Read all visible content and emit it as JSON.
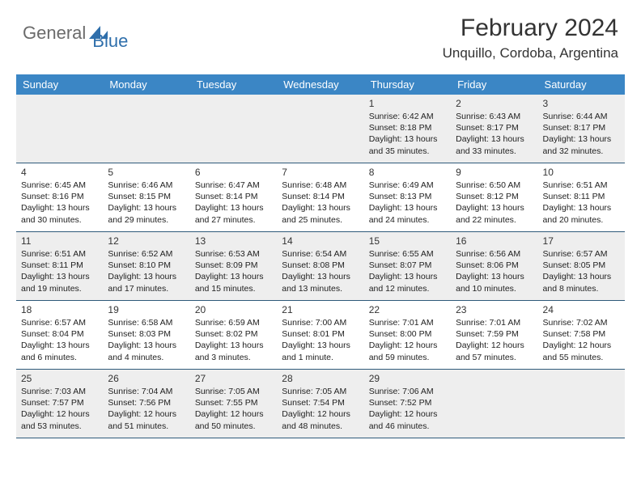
{
  "logo": {
    "gen": "General",
    "blue": "Blue"
  },
  "title": "February 2024",
  "location": "Unquillo, Cordoba, Argentina",
  "colors": {
    "header_bg": "#3b86c5",
    "row_border": "#2f5a7a",
    "alt_bg": "#eeeeee"
  },
  "dow": [
    "Sunday",
    "Monday",
    "Tuesday",
    "Wednesday",
    "Thursday",
    "Friday",
    "Saturday"
  ],
  "weeks": [
    [
      {
        "n": "",
        "sr": "",
        "ss": "",
        "dl": ""
      },
      {
        "n": "",
        "sr": "",
        "ss": "",
        "dl": ""
      },
      {
        "n": "",
        "sr": "",
        "ss": "",
        "dl": ""
      },
      {
        "n": "",
        "sr": "",
        "ss": "",
        "dl": ""
      },
      {
        "n": "1",
        "sr": "Sunrise: 6:42 AM",
        "ss": "Sunset: 8:18 PM",
        "dl": "Daylight: 13 hours and 35 minutes."
      },
      {
        "n": "2",
        "sr": "Sunrise: 6:43 AM",
        "ss": "Sunset: 8:17 PM",
        "dl": "Daylight: 13 hours and 33 minutes."
      },
      {
        "n": "3",
        "sr": "Sunrise: 6:44 AM",
        "ss": "Sunset: 8:17 PM",
        "dl": "Daylight: 13 hours and 32 minutes."
      }
    ],
    [
      {
        "n": "4",
        "sr": "Sunrise: 6:45 AM",
        "ss": "Sunset: 8:16 PM",
        "dl": "Daylight: 13 hours and 30 minutes."
      },
      {
        "n": "5",
        "sr": "Sunrise: 6:46 AM",
        "ss": "Sunset: 8:15 PM",
        "dl": "Daylight: 13 hours and 29 minutes."
      },
      {
        "n": "6",
        "sr": "Sunrise: 6:47 AM",
        "ss": "Sunset: 8:14 PM",
        "dl": "Daylight: 13 hours and 27 minutes."
      },
      {
        "n": "7",
        "sr": "Sunrise: 6:48 AM",
        "ss": "Sunset: 8:14 PM",
        "dl": "Daylight: 13 hours and 25 minutes."
      },
      {
        "n": "8",
        "sr": "Sunrise: 6:49 AM",
        "ss": "Sunset: 8:13 PM",
        "dl": "Daylight: 13 hours and 24 minutes."
      },
      {
        "n": "9",
        "sr": "Sunrise: 6:50 AM",
        "ss": "Sunset: 8:12 PM",
        "dl": "Daylight: 13 hours and 22 minutes."
      },
      {
        "n": "10",
        "sr": "Sunrise: 6:51 AM",
        "ss": "Sunset: 8:11 PM",
        "dl": "Daylight: 13 hours and 20 minutes."
      }
    ],
    [
      {
        "n": "11",
        "sr": "Sunrise: 6:51 AM",
        "ss": "Sunset: 8:11 PM",
        "dl": "Daylight: 13 hours and 19 minutes."
      },
      {
        "n": "12",
        "sr": "Sunrise: 6:52 AM",
        "ss": "Sunset: 8:10 PM",
        "dl": "Daylight: 13 hours and 17 minutes."
      },
      {
        "n": "13",
        "sr": "Sunrise: 6:53 AM",
        "ss": "Sunset: 8:09 PM",
        "dl": "Daylight: 13 hours and 15 minutes."
      },
      {
        "n": "14",
        "sr": "Sunrise: 6:54 AM",
        "ss": "Sunset: 8:08 PM",
        "dl": "Daylight: 13 hours and 13 minutes."
      },
      {
        "n": "15",
        "sr": "Sunrise: 6:55 AM",
        "ss": "Sunset: 8:07 PM",
        "dl": "Daylight: 13 hours and 12 minutes."
      },
      {
        "n": "16",
        "sr": "Sunrise: 6:56 AM",
        "ss": "Sunset: 8:06 PM",
        "dl": "Daylight: 13 hours and 10 minutes."
      },
      {
        "n": "17",
        "sr": "Sunrise: 6:57 AM",
        "ss": "Sunset: 8:05 PM",
        "dl": "Daylight: 13 hours and 8 minutes."
      }
    ],
    [
      {
        "n": "18",
        "sr": "Sunrise: 6:57 AM",
        "ss": "Sunset: 8:04 PM",
        "dl": "Daylight: 13 hours and 6 minutes."
      },
      {
        "n": "19",
        "sr": "Sunrise: 6:58 AM",
        "ss": "Sunset: 8:03 PM",
        "dl": "Daylight: 13 hours and 4 minutes."
      },
      {
        "n": "20",
        "sr": "Sunrise: 6:59 AM",
        "ss": "Sunset: 8:02 PM",
        "dl": "Daylight: 13 hours and 3 minutes."
      },
      {
        "n": "21",
        "sr": "Sunrise: 7:00 AM",
        "ss": "Sunset: 8:01 PM",
        "dl": "Daylight: 13 hours and 1 minute."
      },
      {
        "n": "22",
        "sr": "Sunrise: 7:01 AM",
        "ss": "Sunset: 8:00 PM",
        "dl": "Daylight: 12 hours and 59 minutes."
      },
      {
        "n": "23",
        "sr": "Sunrise: 7:01 AM",
        "ss": "Sunset: 7:59 PM",
        "dl": "Daylight: 12 hours and 57 minutes."
      },
      {
        "n": "24",
        "sr": "Sunrise: 7:02 AM",
        "ss": "Sunset: 7:58 PM",
        "dl": "Daylight: 12 hours and 55 minutes."
      }
    ],
    [
      {
        "n": "25",
        "sr": "Sunrise: 7:03 AM",
        "ss": "Sunset: 7:57 PM",
        "dl": "Daylight: 12 hours and 53 minutes."
      },
      {
        "n": "26",
        "sr": "Sunrise: 7:04 AM",
        "ss": "Sunset: 7:56 PM",
        "dl": "Daylight: 12 hours and 51 minutes."
      },
      {
        "n": "27",
        "sr": "Sunrise: 7:05 AM",
        "ss": "Sunset: 7:55 PM",
        "dl": "Daylight: 12 hours and 50 minutes."
      },
      {
        "n": "28",
        "sr": "Sunrise: 7:05 AM",
        "ss": "Sunset: 7:54 PM",
        "dl": "Daylight: 12 hours and 48 minutes."
      },
      {
        "n": "29",
        "sr": "Sunrise: 7:06 AM",
        "ss": "Sunset: 7:52 PM",
        "dl": "Daylight: 12 hours and 46 minutes."
      },
      {
        "n": "",
        "sr": "",
        "ss": "",
        "dl": ""
      },
      {
        "n": "",
        "sr": "",
        "ss": "",
        "dl": ""
      }
    ]
  ]
}
